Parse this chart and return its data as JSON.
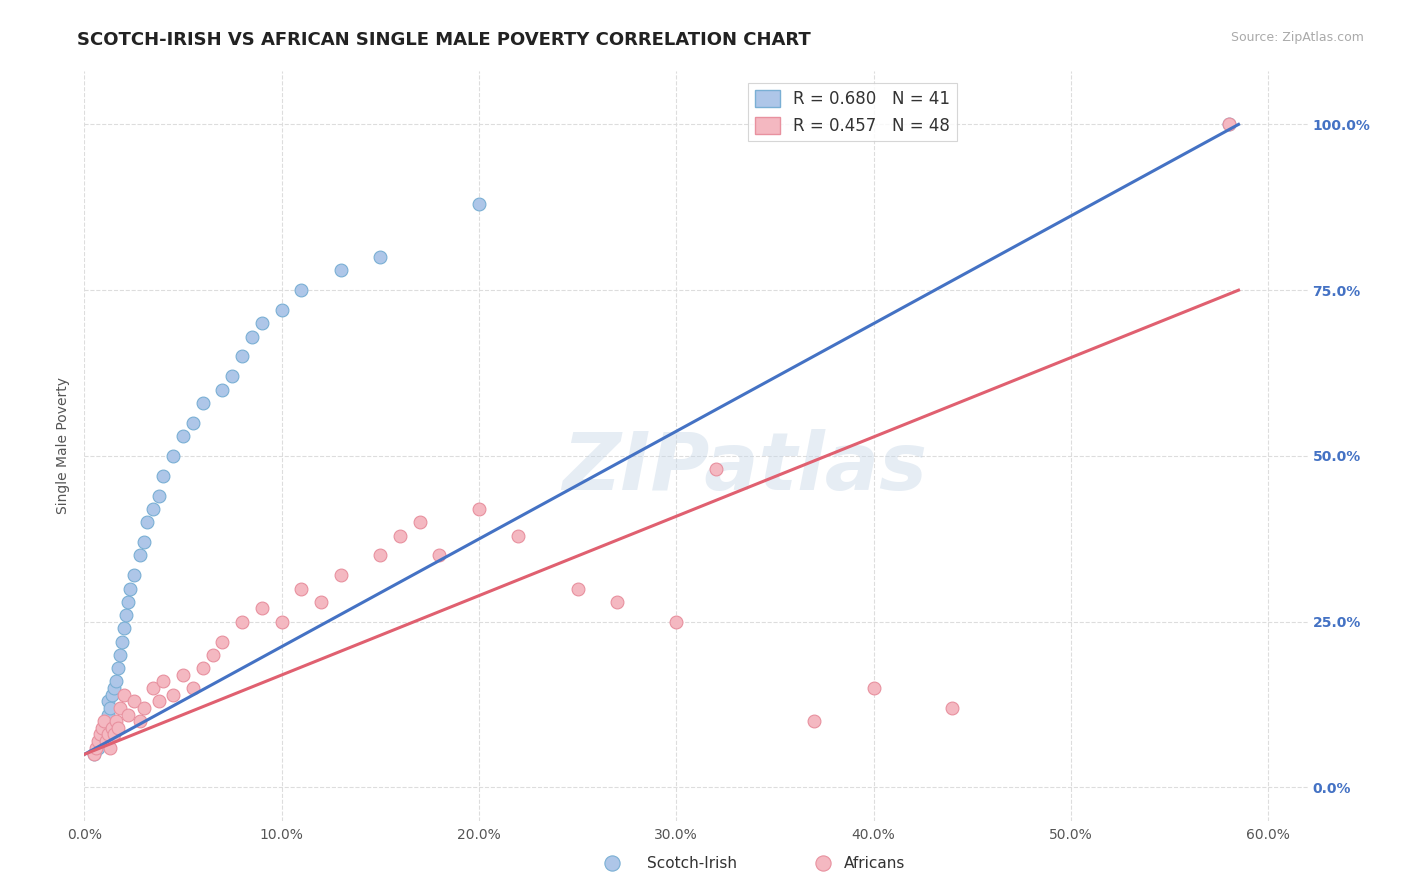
{
  "title": "SCOTCH-IRISH VS AFRICAN SINGLE MALE POVERTY CORRELATION CHART",
  "source_text": "Source: ZipAtlas.com",
  "ylabel": "Single Male Poverty",
  "xlim": [
    0.0,
    0.62
  ],
  "ylim": [
    -0.05,
    1.08
  ],
  "xticks": [
    0.0,
    0.1,
    0.2,
    0.3,
    0.4,
    0.5,
    0.6
  ],
  "xticklabels": [
    "0.0%",
    "10.0%",
    "20.0%",
    "30.0%",
    "40.0%",
    "50.0%",
    "60.0%"
  ],
  "yticks": [
    0.0,
    0.25,
    0.5,
    0.75,
    1.0
  ],
  "yticklabels": [
    "0.0%",
    "25.0%",
    "50.0%",
    "75.0%",
    "100.0%"
  ],
  "scotch_irish_color": "#aec6e8",
  "scotch_irish_edge_color": "#7aafd4",
  "africans_color": "#f4b8c1",
  "africans_edge_color": "#e8919f",
  "regression_blue": "#4472c4",
  "regression_pink": "#e06070",
  "scotch_irish_R": 0.68,
  "scotch_irish_N": 41,
  "africans_R": 0.457,
  "africans_N": 48,
  "watermark_color": "#c8d8e8",
  "scotch_irish_x": [
    0.005,
    0.007,
    0.008,
    0.009,
    0.01,
    0.011,
    0.012,
    0.012,
    0.013,
    0.014,
    0.015,
    0.016,
    0.017,
    0.018,
    0.019,
    0.02,
    0.021,
    0.022,
    0.023,
    0.025,
    0.028,
    0.03,
    0.032,
    0.035,
    0.038,
    0.04,
    0.045,
    0.05,
    0.055,
    0.06,
    0.07,
    0.075,
    0.08,
    0.085,
    0.09,
    0.1,
    0.11,
    0.13,
    0.15,
    0.2,
    0.58
  ],
  "scotch_irish_y": [
    0.05,
    0.06,
    0.07,
    0.08,
    0.09,
    0.1,
    0.11,
    0.13,
    0.12,
    0.14,
    0.15,
    0.16,
    0.18,
    0.2,
    0.22,
    0.24,
    0.26,
    0.28,
    0.3,
    0.32,
    0.35,
    0.37,
    0.4,
    0.42,
    0.44,
    0.47,
    0.5,
    0.53,
    0.55,
    0.58,
    0.6,
    0.62,
    0.65,
    0.68,
    0.7,
    0.72,
    0.75,
    0.78,
    0.8,
    0.88,
    1.0
  ],
  "africans_x": [
    0.005,
    0.006,
    0.007,
    0.008,
    0.009,
    0.01,
    0.011,
    0.012,
    0.013,
    0.014,
    0.015,
    0.016,
    0.017,
    0.018,
    0.02,
    0.022,
    0.025,
    0.028,
    0.03,
    0.035,
    0.038,
    0.04,
    0.045,
    0.05,
    0.055,
    0.06,
    0.065,
    0.07,
    0.08,
    0.09,
    0.1,
    0.11,
    0.12,
    0.13,
    0.15,
    0.16,
    0.17,
    0.18,
    0.2,
    0.22,
    0.25,
    0.27,
    0.3,
    0.32,
    0.37,
    0.4,
    0.44,
    0.58
  ],
  "africans_y": [
    0.05,
    0.06,
    0.07,
    0.08,
    0.09,
    0.1,
    0.07,
    0.08,
    0.06,
    0.09,
    0.08,
    0.1,
    0.09,
    0.12,
    0.14,
    0.11,
    0.13,
    0.1,
    0.12,
    0.15,
    0.13,
    0.16,
    0.14,
    0.17,
    0.15,
    0.18,
    0.2,
    0.22,
    0.25,
    0.27,
    0.25,
    0.3,
    0.28,
    0.32,
    0.35,
    0.38,
    0.4,
    0.35,
    0.42,
    0.38,
    0.3,
    0.28,
    0.25,
    0.48,
    0.1,
    0.15,
    0.12,
    1.0
  ],
  "background_color": "#ffffff",
  "grid_color": "#dddddd",
  "title_fontsize": 13,
  "axis_label_fontsize": 10,
  "tick_fontsize": 10,
  "legend_fontsize": 12,
  "marker_size": 85,
  "right_ytick_color": "#4472c4",
  "blue_line_x0": 0.0,
  "blue_line_y0": 0.05,
  "blue_line_x1": 0.585,
  "blue_line_y1": 1.0,
  "pink_line_x0": 0.0,
  "pink_line_y0": 0.05,
  "pink_line_x1": 0.585,
  "pink_line_y1": 0.75
}
